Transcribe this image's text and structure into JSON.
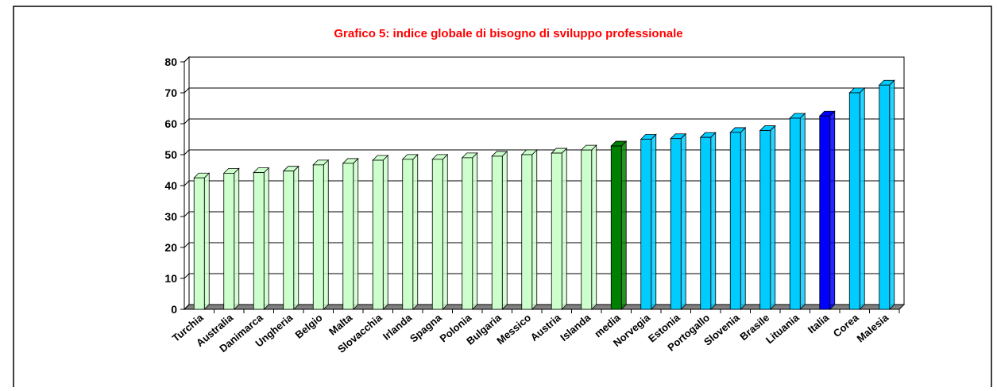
{
  "chart_data": {
    "type": "bar",
    "title": "Grafico 5: indice globale di bisogno di sviluppo professionale",
    "categories": [
      "Turchia",
      "Australia",
      "Danimarca",
      "Ungheria",
      "Belgio",
      "Malta",
      "Slovacchia",
      "Irlanda",
      "Spagna",
      "Polonia",
      "Bulgaria",
      "Messico",
      "Austria",
      "Islanda",
      "media",
      "Norvegia",
      "Estonia",
      "Portogallo",
      "Slovenia",
      "Brasile",
      "Lituania",
      "Italia",
      "Corea",
      "Malesia"
    ],
    "values": [
      42.5,
      44,
      44.2,
      44.7,
      46.7,
      47.2,
      48.2,
      48.5,
      48.5,
      49,
      49.5,
      50,
      50.5,
      51.5,
      52.8,
      55,
      55.2,
      55.6,
      57.2,
      57.8,
      61.8,
      62.5,
      70,
      72.5
    ],
    "colors": [
      "#ccffcc",
      "#ccffcc",
      "#ccffcc",
      "#ccffcc",
      "#ccffcc",
      "#ccffcc",
      "#ccffcc",
      "#ccffcc",
      "#ccffcc",
      "#ccffcc",
      "#ccffcc",
      "#ccffcc",
      "#ccffcc",
      "#ccffcc",
      "#008000",
      "#00ccff",
      "#00ccff",
      "#00ccff",
      "#00ccff",
      "#00ccff",
      "#00ccff",
      "#0000ff",
      "#00ccff",
      "#00ccff"
    ],
    "ylim": [
      0,
      80
    ],
    "yticks": [
      0,
      10,
      20,
      30,
      40,
      50,
      60,
      70,
      80
    ],
    "grid": true
  }
}
